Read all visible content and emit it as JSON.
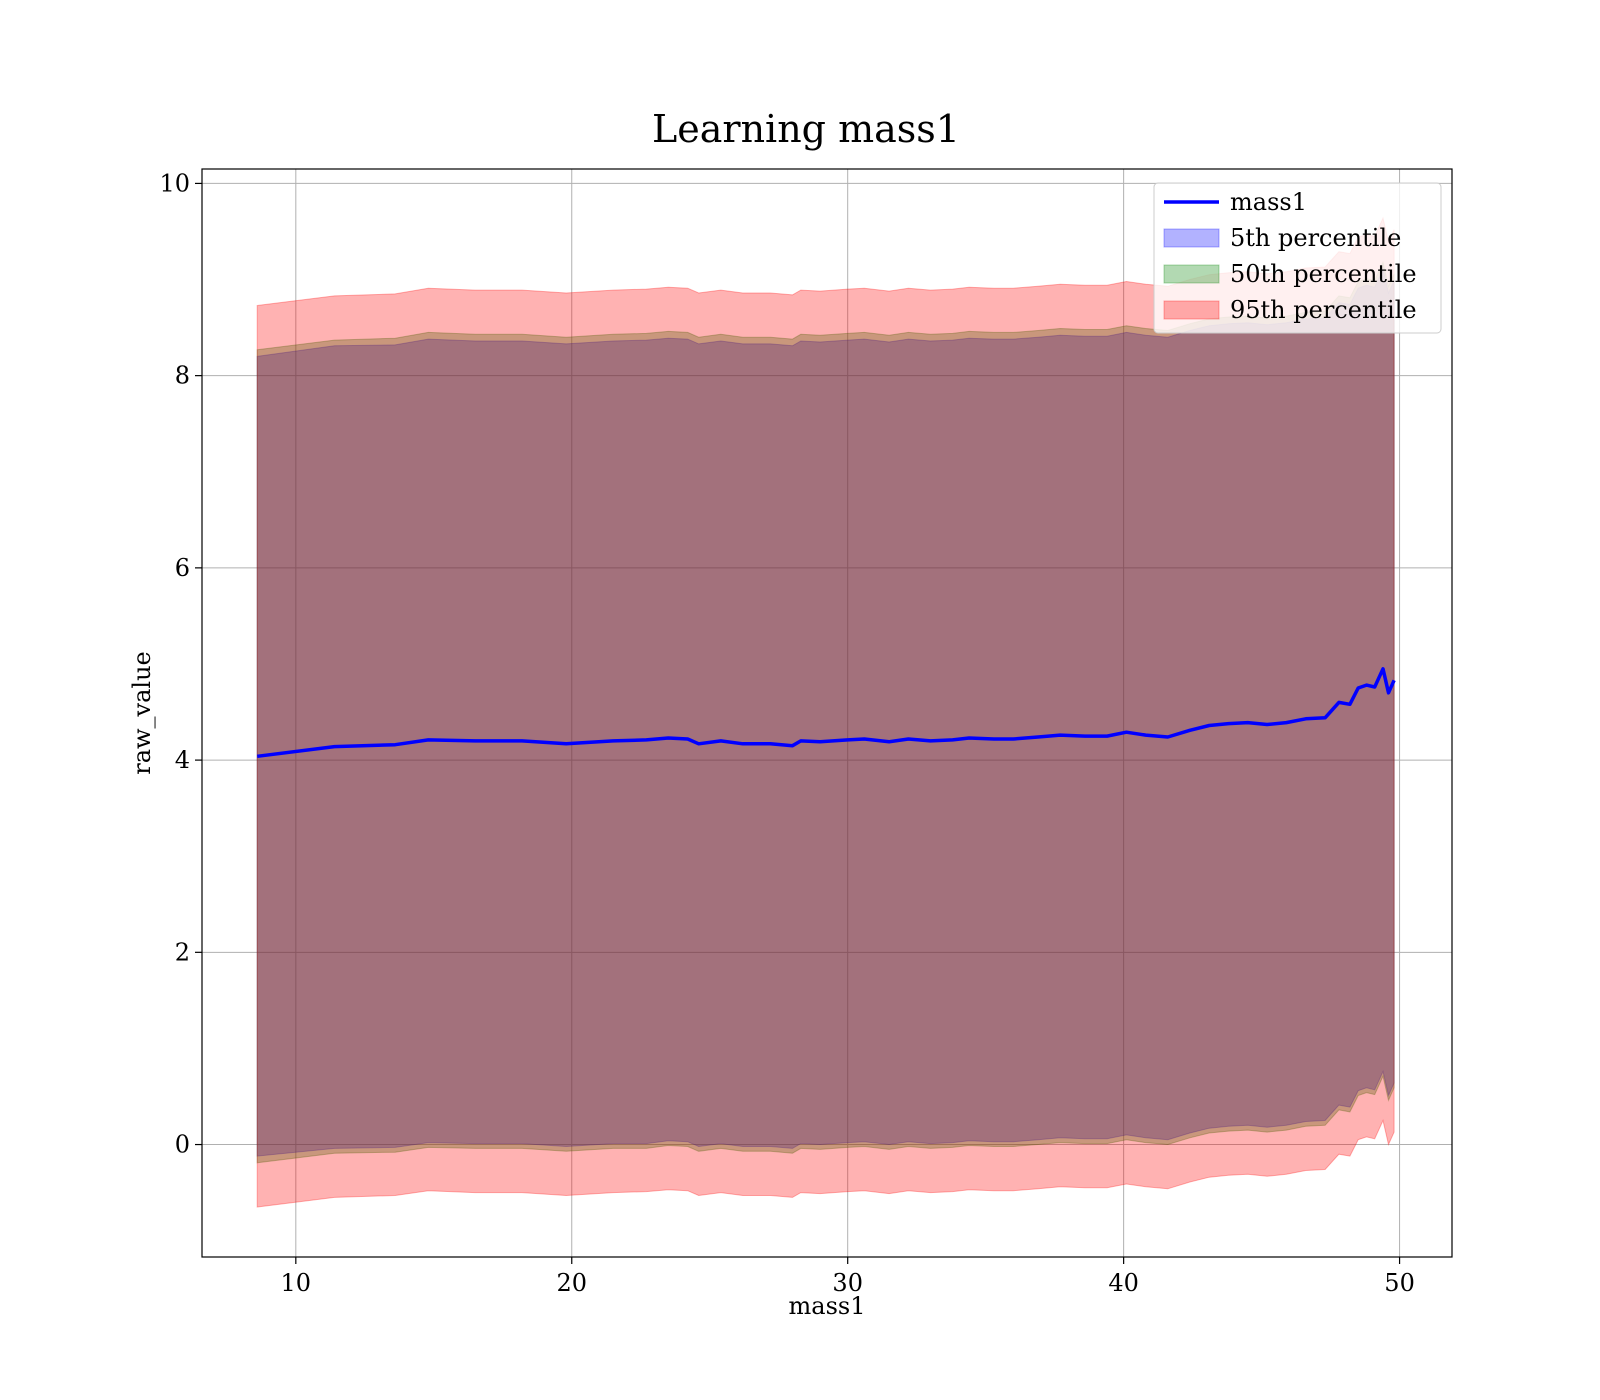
{
  "chart_data": {
    "type": "area",
    "title": "Learning mass1",
    "xlabel": "mass1",
    "ylabel": "raw_value",
    "xlim": [
      6.6,
      51.9
    ],
    "ylim": [
      -1.17,
      10.15
    ],
    "xticks": [
      10,
      20,
      30,
      40,
      50
    ],
    "yticks": [
      0,
      2,
      4,
      6,
      8,
      10
    ],
    "xtick_labels": [
      "10",
      "20",
      "30",
      "40",
      "50"
    ],
    "ytick_labels": [
      "0",
      "2",
      "4",
      "6",
      "8",
      "10"
    ],
    "grid": true,
    "legend_position": "top-right",
    "legend": [
      "mass1",
      "5th percentile",
      "50th percentile",
      "95th percentile"
    ],
    "colors": {
      "line": "#0000ff",
      "p5": "#0000ff",
      "p50": "#008000",
      "p95": "#ff0000",
      "grid": "#b0b0b0"
    },
    "x": [
      8.6,
      11.4,
      13.6,
      14.8,
      16.5,
      18.2,
      19.8,
      21.5,
      22.7,
      23.5,
      24.2,
      24.6,
      25.4,
      26.2,
      27.2,
      28.0,
      28.3,
      29.0,
      30.0,
      30.6,
      31.5,
      32.2,
      33.0,
      33.8,
      34.4,
      35.3,
      36.0,
      36.9,
      37.7,
      38.6,
      39.4,
      40.1,
      40.8,
      41.6,
      42.4,
      43.1,
      43.8,
      44.5,
      45.2,
      45.9,
      46.6,
      47.3,
      47.8,
      48.2,
      48.5,
      48.8,
      49.1,
      49.4,
      49.6,
      49.8
    ],
    "series": [
      {
        "name": "mass1",
        "values": [
          4.04,
          4.14,
          4.16,
          4.21,
          4.2,
          4.2,
          4.17,
          4.2,
          4.21,
          4.23,
          4.22,
          4.17,
          4.2,
          4.17,
          4.17,
          4.15,
          4.2,
          4.19,
          4.21,
          4.22,
          4.19,
          4.22,
          4.2,
          4.21,
          4.23,
          4.22,
          4.22,
          4.24,
          4.26,
          4.25,
          4.25,
          4.29,
          4.26,
          4.24,
          4.31,
          4.36,
          4.38,
          4.39,
          4.37,
          4.39,
          4.43,
          4.44,
          4.6,
          4.58,
          4.75,
          4.78,
          4.76,
          4.95,
          4.7,
          4.83
        ]
      },
      {
        "name": "5th percentile",
        "lower": [
          -0.12,
          -0.04,
          -0.03,
          0.02,
          0.01,
          0.01,
          -0.02,
          0.01,
          0.01,
          0.04,
          0.03,
          -0.02,
          0.01,
          -0.02,
          -0.02,
          -0.04,
          0.01,
          -0.0,
          0.02,
          0.03,
          -0.0,
          0.03,
          0.01,
          0.02,
          0.04,
          0.03,
          0.03,
          0.05,
          0.07,
          0.06,
          0.06,
          0.1,
          0.07,
          0.05,
          0.12,
          0.17,
          0.19,
          0.2,
          0.18,
          0.2,
          0.24,
          0.25,
          0.41,
          0.39,
          0.56,
          0.59,
          0.57,
          0.76,
          0.51,
          0.64
        ],
        "upper": [
          8.2,
          8.31,
          8.32,
          8.38,
          8.36,
          8.36,
          8.33,
          8.36,
          8.37,
          8.39,
          8.38,
          8.33,
          8.36,
          8.33,
          8.33,
          8.31,
          8.36,
          8.35,
          8.37,
          8.38,
          8.35,
          8.38,
          8.36,
          8.37,
          8.39,
          8.38,
          8.38,
          8.4,
          8.42,
          8.41,
          8.41,
          8.45,
          8.42,
          8.4,
          8.47,
          8.52,
          8.54,
          8.55,
          8.53,
          8.55,
          8.59,
          8.6,
          8.76,
          8.74,
          8.91,
          8.94,
          8.92,
          9.11,
          8.86,
          8.99
        ]
      },
      {
        "name": "50th percentile",
        "lower": [
          -0.19,
          -0.09,
          -0.08,
          -0.03,
          -0.04,
          -0.04,
          -0.07,
          -0.04,
          -0.04,
          -0.01,
          -0.02,
          -0.07,
          -0.04,
          -0.07,
          -0.07,
          -0.09,
          -0.04,
          -0.05,
          -0.03,
          -0.02,
          -0.05,
          -0.02,
          -0.04,
          -0.03,
          -0.01,
          -0.02,
          -0.02,
          0.0,
          0.02,
          0.01,
          0.01,
          0.05,
          0.02,
          0.0,
          0.07,
          0.12,
          0.14,
          0.15,
          0.13,
          0.15,
          0.19,
          0.2,
          0.36,
          0.34,
          0.51,
          0.54,
          0.52,
          0.71,
          0.46,
          0.59
        ],
        "upper": [
          8.27,
          8.37,
          8.39,
          8.45,
          8.43,
          8.43,
          8.4,
          8.43,
          8.44,
          8.46,
          8.45,
          8.4,
          8.43,
          8.4,
          8.4,
          8.38,
          8.43,
          8.42,
          8.44,
          8.45,
          8.42,
          8.45,
          8.43,
          8.44,
          8.46,
          8.45,
          8.45,
          8.47,
          8.49,
          8.48,
          8.48,
          8.52,
          8.49,
          8.47,
          8.54,
          8.59,
          8.61,
          8.62,
          8.6,
          8.62,
          8.66,
          8.67,
          8.83,
          8.81,
          8.98,
          9.01,
          8.99,
          9.18,
          8.93,
          9.06
        ]
      },
      {
        "name": "95th percentile",
        "lower": [
          -0.65,
          -0.55,
          -0.53,
          -0.48,
          -0.5,
          -0.5,
          -0.53,
          -0.5,
          -0.49,
          -0.47,
          -0.48,
          -0.53,
          -0.5,
          -0.53,
          -0.53,
          -0.55,
          -0.5,
          -0.51,
          -0.49,
          -0.48,
          -0.51,
          -0.48,
          -0.5,
          -0.49,
          -0.47,
          -0.48,
          -0.48,
          -0.46,
          -0.44,
          -0.45,
          -0.45,
          -0.41,
          -0.44,
          -0.46,
          -0.39,
          -0.34,
          -0.32,
          -0.31,
          -0.33,
          -0.31,
          -0.27,
          -0.26,
          -0.1,
          -0.12,
          0.05,
          0.08,
          0.06,
          0.25,
          0.0,
          0.13
        ],
        "upper": [
          8.73,
          8.83,
          8.85,
          8.91,
          8.89,
          8.89,
          8.86,
          8.89,
          8.9,
          8.92,
          8.91,
          8.86,
          8.89,
          8.86,
          8.86,
          8.84,
          8.89,
          8.88,
          8.9,
          8.91,
          8.88,
          8.91,
          8.89,
          8.9,
          8.92,
          8.91,
          8.91,
          8.93,
          8.95,
          8.94,
          8.94,
          8.98,
          8.95,
          8.93,
          9.0,
          9.05,
          9.07,
          9.08,
          9.06,
          9.08,
          9.12,
          9.13,
          9.29,
          9.27,
          9.44,
          9.47,
          9.45,
          9.64,
          9.39,
          9.52
        ]
      }
    ]
  }
}
